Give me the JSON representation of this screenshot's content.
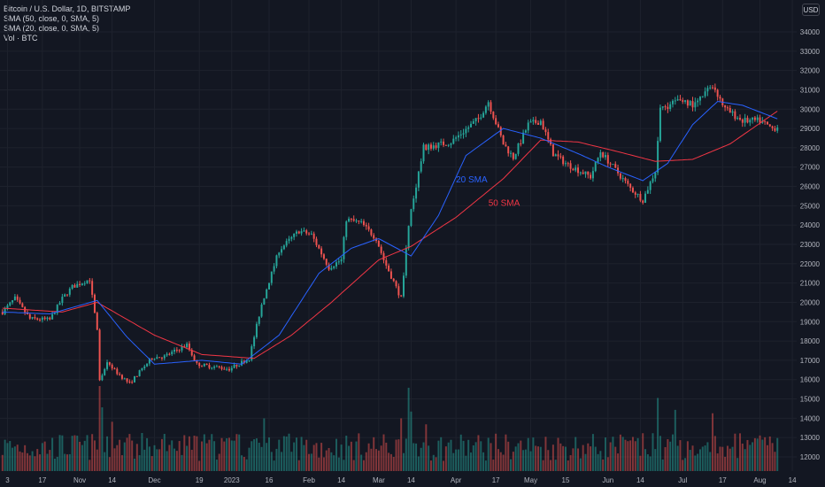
{
  "legend": {
    "symbol": "Bitcoin / U.S. Dollar, 1D, BITSTAMP",
    "sma50": "SMA (50, close, 0, SMA, 5)",
    "sma20": "SMA (20, close, 0, SMA, 5)",
    "volume": "Vol · BTC"
  },
  "currency": "USD",
  "colors": {
    "background": "#131722",
    "grid": "#1e222d",
    "up": "#26a69a",
    "down": "#ef5350",
    "sma20": "#2962ff",
    "sma50": "#f23645",
    "text": "#b2b5be"
  },
  "chart_data": {
    "type": "candlestick",
    "title": "Bitcoin / U.S. Dollar, 1D, BITSTAMP",
    "yaxis": {
      "ticks": [
        12000,
        13000,
        14000,
        15000,
        16000,
        17000,
        18000,
        19000,
        20000,
        21000,
        22000,
        23000,
        24000,
        25000,
        26000,
        27000,
        28000,
        29000,
        30000,
        31000,
        32000,
        33000,
        34000
      ],
      "range": [
        11600,
        34800
      ]
    },
    "xaxis": {
      "ticks": [
        {
          "label": "3",
          "date": "2022-10-03"
        },
        {
          "label": "17",
          "date": "2022-10-17"
        },
        {
          "label": "Nov",
          "date": "2022-11-01"
        },
        {
          "label": "14",
          "date": "2022-11-14"
        },
        {
          "label": "Dec",
          "date": "2022-12-01"
        },
        {
          "label": "19",
          "date": "2022-12-19"
        },
        {
          "label": "2023",
          "date": "2023-01-01"
        },
        {
          "label": "16",
          "date": "2023-01-16"
        },
        {
          "label": "Feb",
          "date": "2023-02-01"
        },
        {
          "label": "14",
          "date": "2023-02-14"
        },
        {
          "label": "Mar",
          "date": "2023-03-01"
        },
        {
          "label": "14",
          "date": "2023-03-14"
        },
        {
          "label": "Apr",
          "date": "2023-04-01"
        },
        {
          "label": "17",
          "date": "2023-04-17"
        },
        {
          "label": "May",
          "date": "2023-05-01"
        },
        {
          "label": "15",
          "date": "2023-05-15"
        },
        {
          "label": "Jun",
          "date": "2023-06-01"
        },
        {
          "label": "14",
          "date": "2023-06-14"
        },
        {
          "label": "Jul",
          "date": "2023-07-01"
        },
        {
          "label": "17",
          "date": "2023-07-17"
        },
        {
          "label": "Aug",
          "date": "2023-08-01"
        },
        {
          "label": "14",
          "date": "2023-08-14"
        }
      ]
    },
    "annotations": [
      {
        "text": "20 SMA",
        "date": "2023-04-01",
        "price": 26200,
        "color": "#2962ff"
      },
      {
        "text": "50 SMA",
        "date": "2023-04-14",
        "price": 25000,
        "color": "#f23645"
      }
    ],
    "price_anchors": [
      [
        "2022-10-01",
        19500
      ],
      [
        "2022-10-06",
        20200
      ],
      [
        "2022-10-12",
        19150
      ],
      [
        "2022-10-20",
        19100
      ],
      [
        "2022-10-25",
        20200
      ],
      [
        "2022-10-29",
        20800
      ],
      [
        "2022-11-05",
        21200
      ],
      [
        "2022-11-08",
        18500
      ],
      [
        "2022-11-09",
        15900
      ],
      [
        "2022-11-12",
        16800
      ],
      [
        "2022-11-21",
        15800
      ],
      [
        "2022-11-30",
        17150
      ],
      [
        "2022-12-05",
        17200
      ],
      [
        "2022-12-14",
        17800
      ],
      [
        "2022-12-18",
        16800
      ],
      [
        "2022-12-31",
        16550
      ],
      [
        "2023-01-08",
        17100
      ],
      [
        "2023-01-13",
        19900
      ],
      [
        "2023-01-20",
        22700
      ],
      [
        "2023-01-28",
        23700
      ],
      [
        "2023-02-02",
        23500
      ],
      [
        "2023-02-09",
        21800
      ],
      [
        "2023-02-14",
        22200
      ],
      [
        "2023-02-16",
        24300
      ],
      [
        "2023-02-22",
        24100
      ],
      [
        "2023-02-28",
        23300
      ],
      [
        "2023-03-03",
        22200
      ],
      [
        "2023-03-10",
        20200
      ],
      [
        "2023-03-13",
        24100
      ],
      [
        "2023-03-19",
        28000
      ],
      [
        "2023-03-30",
        28300
      ],
      [
        "2023-04-10",
        29500
      ],
      [
        "2023-04-14",
        30400
      ],
      [
        "2023-04-20",
        28200
      ],
      [
        "2023-04-24",
        27500
      ],
      [
        "2023-04-30",
        29200
      ],
      [
        "2023-05-05",
        29400
      ],
      [
        "2023-05-10",
        27700
      ],
      [
        "2023-05-15",
        27200
      ],
      [
        "2023-05-25",
        26500
      ],
      [
        "2023-05-29",
        27800
      ],
      [
        "2023-06-05",
        26700
      ],
      [
        "2023-06-10",
        25900
      ],
      [
        "2023-06-15",
        25300
      ],
      [
        "2023-06-20",
        26800
      ],
      [
        "2023-06-22",
        30000
      ],
      [
        "2023-06-30",
        30500
      ],
      [
        "2023-07-06",
        30200
      ],
      [
        "2023-07-13",
        31300
      ],
      [
        "2023-07-18",
        30000
      ],
      [
        "2023-07-25",
        29400
      ],
      [
        "2023-08-01",
        29400
      ],
      [
        "2023-08-06",
        29000
      ],
      [
        "2023-08-08",
        29100
      ]
    ],
    "sma20_anchors": [
      [
        "2022-10-01",
        19500
      ],
      [
        "2022-10-20",
        19400
      ],
      [
        "2022-11-08",
        20100
      ],
      [
        "2022-11-20",
        18200
      ],
      [
        "2022-12-01",
        16800
      ],
      [
        "2022-12-20",
        17000
      ],
      [
        "2023-01-05",
        16800
      ],
      [
        "2023-01-20",
        18300
      ],
      [
        "2023-02-05",
        21500
      ],
      [
        "2023-02-18",
        22800
      ],
      [
        "2023-03-01",
        23300
      ],
      [
        "2023-03-14",
        22400
      ],
      [
        "2023-03-25",
        24500
      ],
      [
        "2023-04-05",
        27600
      ],
      [
        "2023-04-20",
        29000
      ],
      [
        "2023-05-05",
        28500
      ],
      [
        "2023-05-20",
        27700
      ],
      [
        "2023-06-01",
        27000
      ],
      [
        "2023-06-15",
        26300
      ],
      [
        "2023-06-25",
        27200
      ],
      [
        "2023-07-05",
        29200
      ],
      [
        "2023-07-15",
        30400
      ],
      [
        "2023-07-25",
        30200
      ],
      [
        "2023-08-06",
        29600
      ],
      [
        "2023-08-08",
        29500
      ]
    ],
    "sma50_anchors": [
      [
        "2022-10-01",
        19700
      ],
      [
        "2022-10-25",
        19500
      ],
      [
        "2022-11-08",
        20000
      ],
      [
        "2022-12-01",
        18300
      ],
      [
        "2022-12-20",
        17300
      ],
      [
        "2023-01-10",
        17100
      ],
      [
        "2023-01-25",
        18300
      ],
      [
        "2023-02-10",
        20000
      ],
      [
        "2023-03-01",
        22200
      ],
      [
        "2023-03-14",
        22900
      ],
      [
        "2023-04-01",
        24400
      ],
      [
        "2023-04-20",
        26400
      ],
      [
        "2023-05-05",
        28400
      ],
      [
        "2023-05-20",
        28300
      ],
      [
        "2023-06-05",
        27800
      ],
      [
        "2023-06-20",
        27300
      ],
      [
        "2023-07-05",
        27400
      ],
      [
        "2023-07-20",
        28200
      ],
      [
        "2023-08-08",
        29900
      ]
    ],
    "volume_spikes": [
      [
        "2022-11-09",
        1.0
      ],
      [
        "2022-11-10",
        0.75
      ],
      [
        "2022-11-14",
        0.58
      ],
      [
        "2023-01-14",
        0.62
      ],
      [
        "2023-03-10",
        0.62
      ],
      [
        "2023-03-13",
        0.98
      ],
      [
        "2023-03-14",
        0.7
      ],
      [
        "2023-03-20",
        0.55
      ],
      [
        "2023-06-21",
        0.86
      ],
      [
        "2023-06-28",
        0.72
      ],
      [
        "2023-07-13",
        0.68
      ]
    ],
    "volume_max_btc": 22000
  }
}
